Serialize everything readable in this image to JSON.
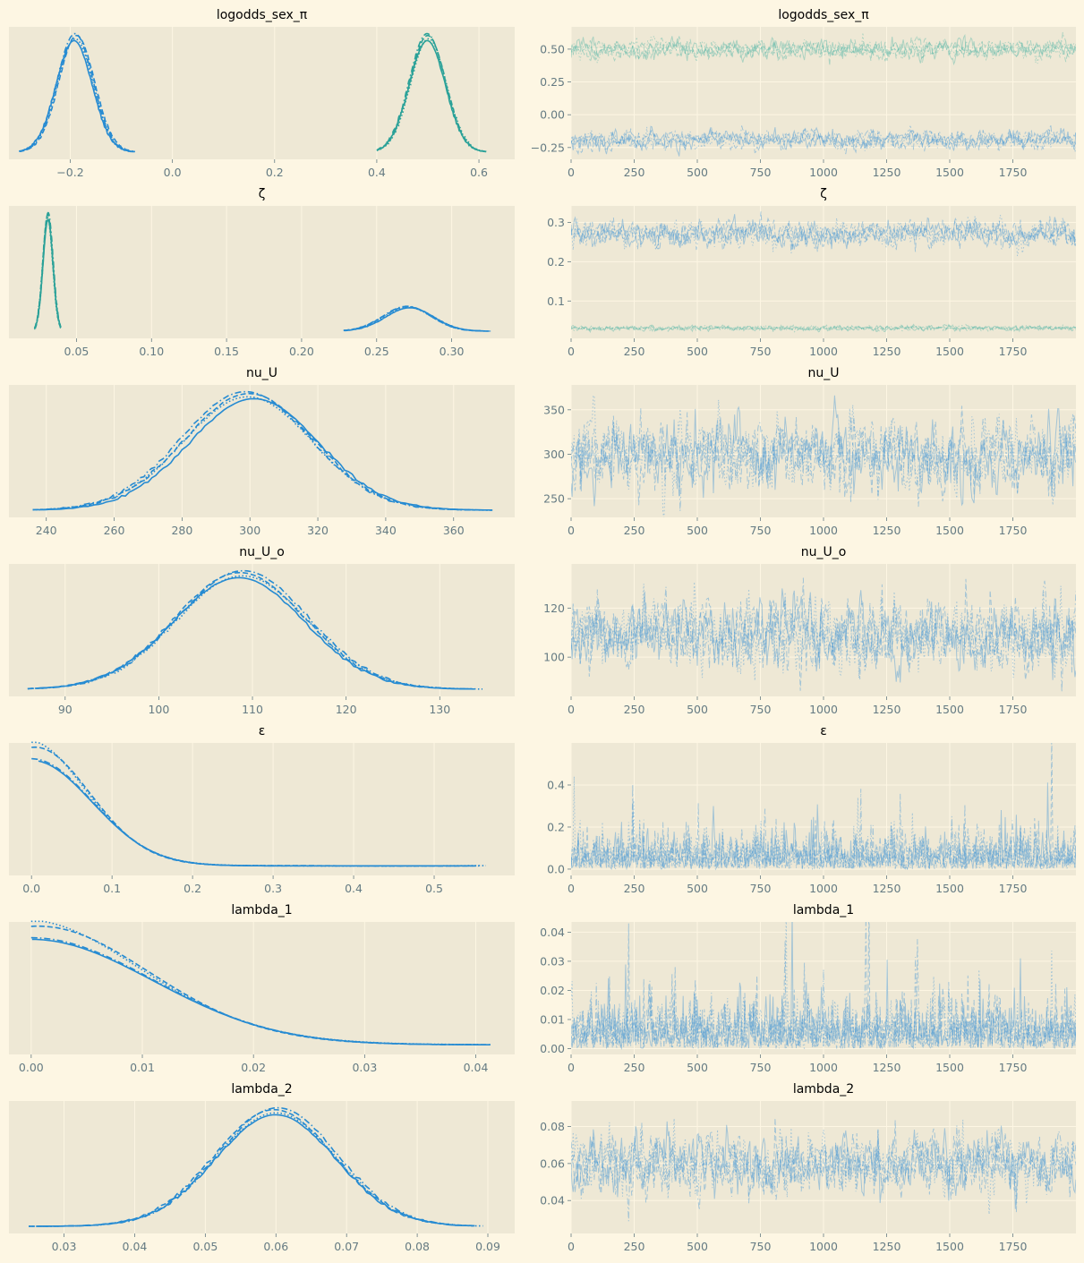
{
  "chart_data": {
    "type": "line",
    "title": "",
    "layout": "7 rows x 2 columns: posterior density (left) and trace (right) per variable",
    "colors": {
      "blue": "#268bd2",
      "teal": "#2aa198",
      "trace_blue": "#4a9ad4",
      "trace_teal": "#5cb8a8"
    },
    "chains": 4,
    "chain_linestyles": [
      "solid",
      "dashed",
      "dotted",
      "dashdot"
    ],
    "draws": 2000,
    "trace_xticks": [
      "0",
      "250",
      "500",
      "750",
      "1000",
      "1250",
      "1500",
      "1750"
    ],
    "trace_xlim": [
      0,
      2000
    ],
    "rows": [
      {
        "name": "logodds_sex_π",
        "density": {
          "xlim": [
            -0.32,
            0.67
          ],
          "xticks": [
            -0.2,
            0.0,
            0.2,
            0.4,
            0.6
          ],
          "xticklabels": [
            "−0.2",
            "0.0",
            "0.2",
            "0.4",
            "0.6"
          ],
          "components": [
            {
              "color": "blue",
              "mean": -0.19,
              "sd": 0.035,
              "min": -0.3,
              "max": -0.07
            },
            {
              "color": "teal",
              "mean": 0.5,
              "sd": 0.035,
              "min": 0.4,
              "max": 0.62
            }
          ]
        },
        "trace": {
          "ylim": [
            -0.34,
            0.67
          ],
          "yticks": [
            -0.25,
            0.0,
            0.25,
            0.5
          ],
          "yticklabels": [
            "−0.25",
            "0.00",
            "0.25",
            "0.50"
          ],
          "components": [
            {
              "color": "trace_teal",
              "mean": 0.5,
              "sd": 0.035
            },
            {
              "color": "trace_blue",
              "mean": -0.19,
              "sd": 0.035
            }
          ]
        }
      },
      {
        "name": "ζ",
        "density": {
          "xlim": [
            0.005,
            0.342
          ],
          "xticks": [
            0.05,
            0.1,
            0.15,
            0.2,
            0.25,
            0.3
          ],
          "xticklabels": [
            "0.05",
            "0.10",
            "0.15",
            "0.20",
            "0.25",
            "0.30"
          ],
          "components": [
            {
              "color": "teal",
              "mean": 0.031,
              "sd": 0.0033,
              "min": 0.022,
              "max": 0.04,
              "relheight": 1.0
            },
            {
              "color": "blue",
              "mean": 0.271,
              "sd": 0.016,
              "min": 0.228,
              "max": 0.326,
              "relheight": 0.21
            }
          ]
        },
        "trace": {
          "ylim": [
            0.005,
            0.342
          ],
          "yticks": [
            0.1,
            0.2,
            0.3
          ],
          "yticklabels": [
            "0.1",
            "0.2",
            "0.3"
          ],
          "components": [
            {
              "color": "trace_blue",
              "mean": 0.271,
              "sd": 0.016
            },
            {
              "color": "trace_teal",
              "mean": 0.031,
              "sd": 0.003
            }
          ]
        }
      },
      {
        "name": "nu_U",
        "density": {
          "xlim": [
            229,
            378
          ],
          "xticks": [
            240,
            260,
            280,
            300,
            320,
            340,
            360
          ],
          "xticklabels": [
            "240",
            "260",
            "280",
            "300",
            "320",
            "340",
            "360"
          ],
          "components": [
            {
              "color": "blue",
              "mean": 300,
              "sd": 19,
              "min": 236,
              "max": 372
            }
          ]
        },
        "trace": {
          "ylim": [
            229,
            378
          ],
          "yticks": [
            250,
            300,
            350
          ],
          "yticklabels": [
            "250",
            "300",
            "350"
          ],
          "components": [
            {
              "color": "trace_blue",
              "mean": 300,
              "sd": 19
            }
          ]
        }
      },
      {
        "name": "nu_U_o",
        "density": {
          "xlim": [
            84,
            138
          ],
          "xticks": [
            90,
            100,
            110,
            120,
            130
          ],
          "xticklabels": [
            "90",
            "100",
            "110",
            "120",
            "130"
          ],
          "components": [
            {
              "color": "blue",
              "mean": 109,
              "sd": 7,
              "min": 86,
              "max": 135
            }
          ]
        },
        "trace": {
          "ylim": [
            84,
            138
          ],
          "yticks": [
            100,
            120
          ],
          "yticklabels": [
            "100",
            "120"
          ],
          "components": [
            {
              "color": "trace_blue",
              "mean": 109,
              "sd": 7
            }
          ]
        }
      },
      {
        "name": "ε",
        "density": {
          "xlim": [
            -0.028,
            0.6
          ],
          "xticks": [
            0.0,
            0.1,
            0.2,
            0.3,
            0.4,
            0.5
          ],
          "xticklabels": [
            "0.0",
            "0.1",
            "0.2",
            "0.3",
            "0.4",
            "0.5"
          ],
          "shape": "half-normal",
          "components": [
            {
              "color": "blue",
              "scale": 0.075,
              "min": 0.0,
              "max": 0.57
            }
          ]
        },
        "trace": {
          "ylim": [
            -0.03,
            0.6
          ],
          "yticks": [
            0.0,
            0.2,
            0.4
          ],
          "yticklabels": [
            "0.0",
            "0.2",
            "0.4"
          ],
          "components": [
            {
              "color": "trace_blue",
              "mean": 0.07,
              "sd": 0.07,
              "min": 0.0
            }
          ]
        }
      },
      {
        "name": "lambda_1",
        "density": {
          "xlim": [
            -0.002,
            0.0435
          ],
          "xticks": [
            0.0,
            0.01,
            0.02,
            0.03,
            0.04
          ],
          "xticklabels": [
            "0.00",
            "0.01",
            "0.02",
            "0.03",
            "0.04"
          ],
          "shape": "half-normal",
          "components": [
            {
              "color": "blue",
              "scale": 0.011,
              "min": 0.0,
              "max": 0.0415
            }
          ]
        },
        "trace": {
          "ylim": [
            -0.002,
            0.0435
          ],
          "yticks": [
            0.0,
            0.01,
            0.02,
            0.03,
            0.04
          ],
          "yticklabels": [
            "0.00",
            "0.01",
            "0.02",
            "0.03",
            "0.04"
          ],
          "components": [
            {
              "color": "trace_blue",
              "mean": 0.01,
              "sd": 0.007,
              "min": 0.0
            }
          ]
        }
      },
      {
        "name": "lambda_2",
        "density": {
          "xlim": [
            0.0222,
            0.0938
          ],
          "xticks": [
            0.03,
            0.04,
            0.05,
            0.06,
            0.07,
            0.08,
            0.09
          ],
          "xticklabels": [
            "0.03",
            "0.04",
            "0.05",
            "0.06",
            "0.07",
            "0.08",
            "0.09"
          ],
          "components": [
            {
              "color": "blue",
              "mean": 0.06,
              "sd": 0.0085,
              "min": 0.025,
              "max": 0.09
            }
          ]
        },
        "trace": {
          "ylim": [
            0.0222,
            0.0938
          ],
          "yticks": [
            0.04,
            0.06,
            0.08
          ],
          "yticklabels": [
            "0.04",
            "0.06",
            "0.08"
          ],
          "components": [
            {
              "color": "trace_blue",
              "mean": 0.06,
              "sd": 0.0085
            }
          ]
        }
      }
    ]
  }
}
